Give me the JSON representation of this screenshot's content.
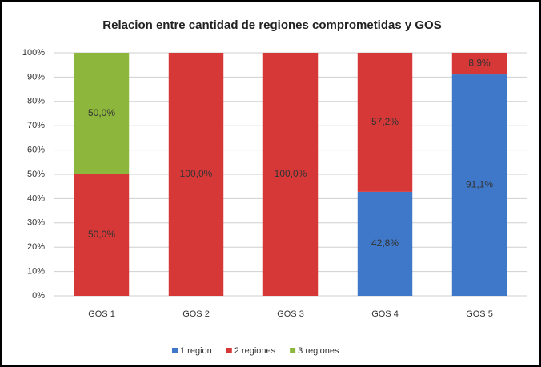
{
  "chart_data": {
    "type": "stacked_bar_percent",
    "title": "Relacion entre cantidad de regiones comprometidas y GOS",
    "categories": [
      "GOS 1",
      "GOS 2",
      "GOS 3",
      "GOS 4",
      "GOS 5"
    ],
    "series": [
      {
        "name": "1 region",
        "color": "#3f78c8",
        "values": [
          0,
          0,
          0,
          42.8,
          91.1
        ],
        "value_labels": [
          null,
          null,
          null,
          "42,8%",
          "91,1%"
        ]
      },
      {
        "name": "2 regiones",
        "color": "#d63838",
        "values": [
          50,
          100,
          100,
          57.2,
          8.9
        ],
        "value_labels": [
          "50,0%",
          "100,0%",
          "100,0%",
          "57,2%",
          "8,9%"
        ]
      },
      {
        "name": "3 regiones",
        "color": "#8db63c",
        "values": [
          50,
          0,
          0,
          0,
          0
        ],
        "value_labels": [
          "50,0%",
          null,
          null,
          null,
          null
        ]
      }
    ],
    "ylim": [
      0,
      100
    ],
    "yticks": [
      {
        "value": 0,
        "label": "0%"
      },
      {
        "value": 10,
        "label": "10%"
      },
      {
        "value": 20,
        "label": "20%"
      },
      {
        "value": 30,
        "label": "30%"
      },
      {
        "value": 40,
        "label": "40%"
      },
      {
        "value": 50,
        "label": "50%"
      },
      {
        "value": 60,
        "label": "60%"
      },
      {
        "value": 70,
        "label": "70%"
      },
      {
        "value": 80,
        "label": "80%"
      },
      {
        "value": 90,
        "label": "90%"
      },
      {
        "value": 100,
        "label": "100%"
      }
    ],
    "grid": true,
    "legend": "bottom"
  }
}
